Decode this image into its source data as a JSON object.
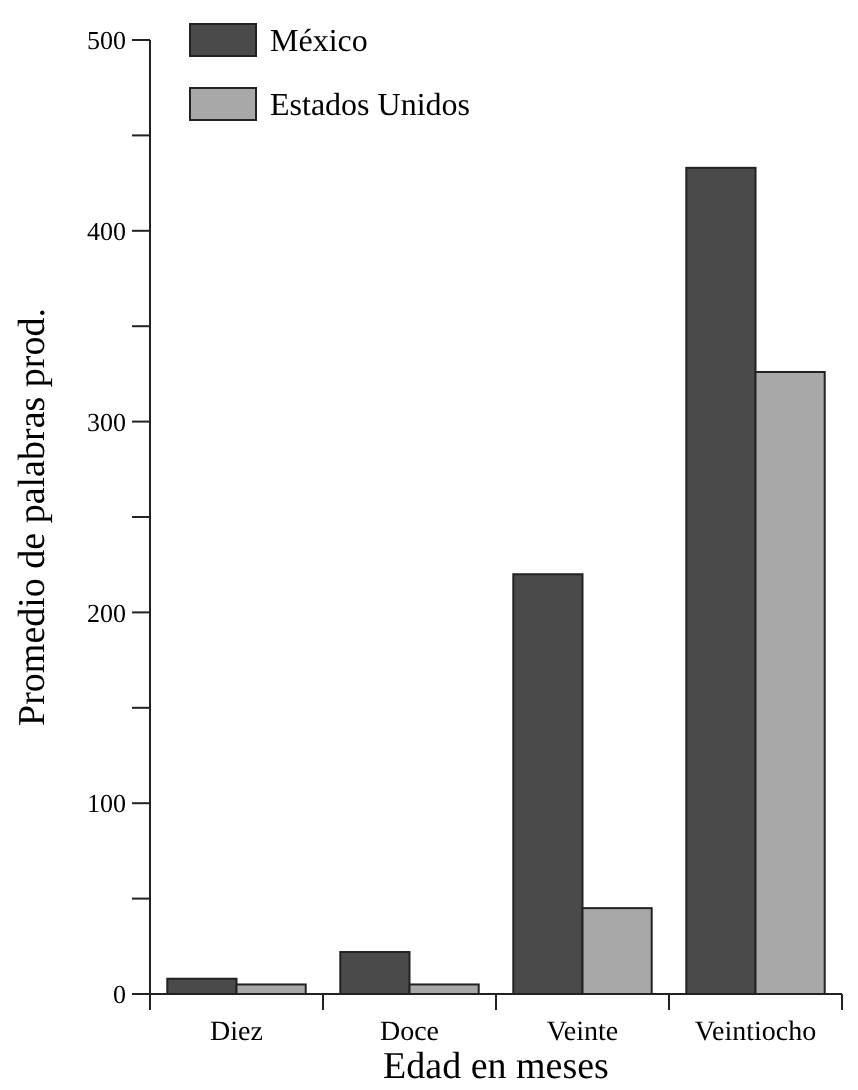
{
  "chart_data": {
    "type": "bar",
    "xlabel": "Edad en meses",
    "ylabel": "Promedio de palabras prod.",
    "categories": [
      "Diez",
      "Doce",
      "Veinte",
      "Veintiocho"
    ],
    "series": [
      {
        "name": "México",
        "color": "#4a4a4a",
        "values": [
          8,
          22,
          220,
          433
        ]
      },
      {
        "name": "Estados Unidos",
        "color": "#a8a8a8",
        "values": [
          5,
          5,
          45,
          326
        ]
      }
    ],
    "ylim": [
      0,
      500
    ],
    "yticks": [
      0,
      {
        "value": 50,
        "label": null
      },
      100,
      {
        "value": 150,
        "label": null
      },
      200,
      {
        "value": 250,
        "label": null
      },
      300,
      {
        "value": 350,
        "label": null
      },
      400,
      {
        "value": 450,
        "label": null
      },
      500
    ],
    "grid": false,
    "legend": "top left"
  }
}
